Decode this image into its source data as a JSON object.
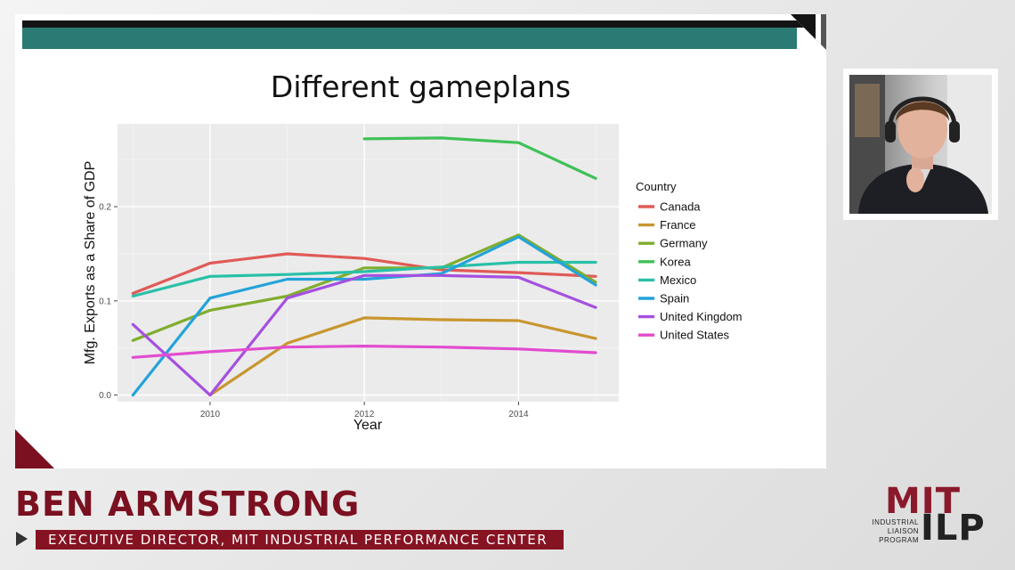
{
  "slide": {
    "title": "Different gameplans"
  },
  "chart_data": {
    "type": "line",
    "xlabel": "Year",
    "ylabel": "Mfg. Exports as a Share of GDP",
    "xlim": [
      2008.8,
      2015.3
    ],
    "ylim": [
      -0.007,
      0.288
    ],
    "x_ticks": [
      2010,
      2012,
      2014
    ],
    "y_ticks": [
      0.0,
      0.1,
      0.2
    ],
    "y_tick_labels": [
      "0.0",
      "0.1",
      "0.2"
    ],
    "x_tick_labels": [
      "2010",
      "2012",
      "2014"
    ],
    "grid": true,
    "legend_title": "Country",
    "legend_position": "right",
    "series": [
      {
        "name": "Canada",
        "color": "#e05a57",
        "x": [
          2009,
          2010,
          2011,
          2012,
          2013,
          2014,
          2015
        ],
        "values": [
          0.108,
          0.14,
          0.15,
          0.145,
          0.133,
          0.13,
          0.126
        ]
      },
      {
        "name": "France",
        "color": "#c8962f",
        "x": [
          2010,
          2011,
          2012,
          2013,
          2014,
          2015
        ],
        "values": [
          0.0,
          0.055,
          0.082,
          0.08,
          0.079,
          0.06
        ]
      },
      {
        "name": "Germany",
        "color": "#80ad2e",
        "x": [
          2009,
          2010,
          2011,
          2012,
          2013,
          2014,
          2015
        ],
        "values": [
          0.058,
          0.09,
          0.105,
          0.135,
          0.135,
          0.17,
          0.12
        ]
      },
      {
        "name": "Korea",
        "color": "#3fc157",
        "x": [
          2012,
          2013,
          2014,
          2015
        ],
        "values": [
          0.272,
          0.273,
          0.268,
          0.23
        ]
      },
      {
        "name": "Mexico",
        "color": "#28c0a8",
        "x": [
          2009,
          2010,
          2011,
          2012,
          2013,
          2014,
          2015
        ],
        "values": [
          0.105,
          0.126,
          0.128,
          0.131,
          0.136,
          0.141,
          0.141
        ]
      },
      {
        "name": "Spain",
        "color": "#23a3d9",
        "x": [
          2009,
          2010,
          2011,
          2012,
          2013,
          2014,
          2015
        ],
        "values": [
          0.0,
          0.103,
          0.123,
          0.123,
          0.129,
          0.168,
          0.117
        ]
      },
      {
        "name": "United Kingdom",
        "color": "#a550e0",
        "x": [
          2009,
          2010,
          2011,
          2012,
          2013,
          2014,
          2015
        ],
        "values": [
          0.075,
          0.0,
          0.103,
          0.127,
          0.127,
          0.125,
          0.093
        ]
      },
      {
        "name": "United States",
        "color": "#e24bd0",
        "x": [
          2009,
          2010,
          2011,
          2012,
          2013,
          2014,
          2015
        ],
        "values": [
          0.04,
          0.046,
          0.051,
          0.052,
          0.051,
          0.049,
          0.045
        ]
      }
    ]
  },
  "lower_third": {
    "speaker_name": "BEN ARMSTRONG",
    "speaker_title": "EXECUTIVE DIRECTOR, MIT INDUSTRIAL PERFORMANCE CENTER"
  },
  "logo": {
    "mit": "MIT",
    "ilp": "ILP",
    "line1": "INDUSTRIAL",
    "line2": "LIAISON",
    "line3": "PROGRAM"
  },
  "colors": {
    "teal_bar": "#2b7a73",
    "brand_maroon": "#861322",
    "plot_background": "#ebebeb"
  }
}
